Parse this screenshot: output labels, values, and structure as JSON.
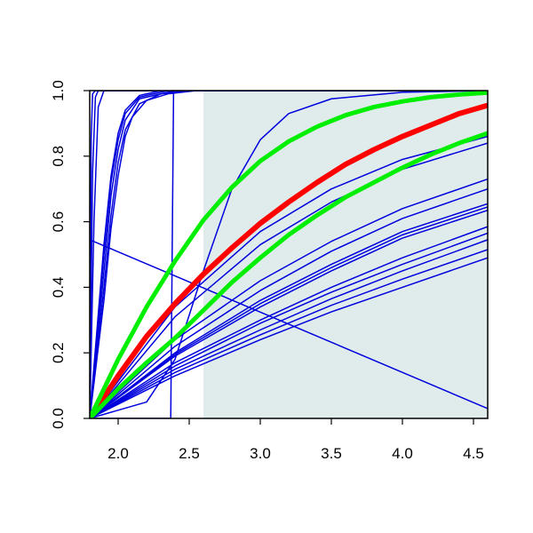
{
  "chart_data": {
    "type": "line",
    "title": "",
    "xlabel": "",
    "ylabel": "",
    "xlim": [
      1.8,
      4.6
    ],
    "ylim": [
      0.0,
      1.0
    ],
    "x_ticks": [
      2.0,
      2.5,
      3.0,
      3.5,
      4.0,
      4.5
    ],
    "x_tick_labels": [
      "2.0",
      "2.5",
      "3.0",
      "3.5",
      "4.0",
      "4.5"
    ],
    "y_ticks": [
      0.0,
      0.2,
      0.4,
      0.6,
      0.8,
      1.0
    ],
    "y_tick_labels": [
      "0.0",
      "0.2",
      "0.4",
      "0.6",
      "0.8",
      "1.0"
    ],
    "grid": false,
    "legend": "none",
    "shaded_region": {
      "x_start": 2.6,
      "x_end": 4.6,
      "color": "#e0ecec"
    },
    "colors": {
      "background_curves": "#0000dd",
      "highlight_red": "#ff0000",
      "highlight_green": "#00ee00",
      "axes": "#000000"
    },
    "series": [
      {
        "color": "#0000dd",
        "width": 1.5,
        "points": [
          [
            1.8,
            0.0
          ],
          [
            1.81,
            0.85
          ],
          [
            1.82,
            0.99
          ],
          [
            1.84,
            1.0
          ],
          [
            4.6,
            1.0
          ]
        ]
      },
      {
        "color": "#0000dd",
        "width": 1.5,
        "points": [
          [
            1.8,
            0.0
          ],
          [
            1.82,
            0.75
          ],
          [
            1.84,
            0.98
          ],
          [
            1.86,
            1.0
          ],
          [
            4.6,
            1.0
          ]
        ]
      },
      {
        "color": "#0000dd",
        "width": 1.5,
        "points": [
          [
            1.8,
            0.0
          ],
          [
            1.83,
            0.6
          ],
          [
            1.86,
            0.95
          ],
          [
            1.9,
            1.0
          ],
          [
            4.6,
            1.0
          ]
        ]
      },
      {
        "color": "#0000dd",
        "width": 1.5,
        "points": [
          [
            1.8,
            0.0
          ],
          [
            1.9,
            0.53
          ],
          [
            1.95,
            0.74
          ],
          [
            2.0,
            0.87
          ],
          [
            2.05,
            0.94
          ],
          [
            2.15,
            0.985
          ],
          [
            2.3,
            1.0
          ],
          [
            4.6,
            1.0
          ]
        ]
      },
      {
        "color": "#0000dd",
        "width": 1.5,
        "points": [
          [
            1.8,
            0.0
          ],
          [
            1.9,
            0.5
          ],
          [
            1.95,
            0.72
          ],
          [
            2.0,
            0.85
          ],
          [
            2.05,
            0.93
          ],
          [
            2.15,
            0.98
          ],
          [
            2.35,
            1.0
          ],
          [
            4.6,
            1.0
          ]
        ]
      },
      {
        "color": "#0000dd",
        "width": 1.5,
        "points": [
          [
            1.8,
            0.0
          ],
          [
            1.9,
            0.45
          ],
          [
            1.95,
            0.68
          ],
          [
            2.0,
            0.82
          ],
          [
            2.05,
            0.91
          ],
          [
            2.15,
            0.975
          ],
          [
            2.4,
            1.0
          ],
          [
            4.6,
            1.0
          ]
        ]
      },
      {
        "color": "#0000dd",
        "width": 1.5,
        "points": [
          [
            1.8,
            0.0
          ],
          [
            1.9,
            0.4
          ],
          [
            1.95,
            0.62
          ],
          [
            2.0,
            0.78
          ],
          [
            2.05,
            0.88
          ],
          [
            2.15,
            0.96
          ],
          [
            2.3,
            0.99
          ],
          [
            2.5,
            1.0
          ],
          [
            4.6,
            1.0
          ]
        ]
      },
      {
        "color": "#0000dd",
        "width": 1.5,
        "points": [
          [
            1.8,
            0.0
          ],
          [
            1.9,
            0.36
          ],
          [
            1.95,
            0.58
          ],
          [
            2.0,
            0.74
          ],
          [
            2.05,
            0.86
          ],
          [
            2.1,
            0.92
          ],
          [
            2.2,
            0.97
          ],
          [
            2.35,
            0.99
          ],
          [
            2.55,
            1.0
          ],
          [
            4.6,
            1.0
          ]
        ]
      },
      {
        "color": "#0000dd",
        "width": 1.5,
        "points": [
          [
            1.8,
            0.0
          ],
          [
            2.37,
            0.0
          ],
          [
            2.38,
            0.5
          ],
          [
            2.39,
            1.0
          ],
          [
            4.6,
            1.0
          ]
        ]
      },
      {
        "color": "#0000dd",
        "width": 1.5,
        "points": [
          [
            1.8,
            0.0
          ],
          [
            2.2,
            0.05
          ],
          [
            2.4,
            0.18
          ],
          [
            2.6,
            0.45
          ],
          [
            2.8,
            0.7
          ],
          [
            3.0,
            0.85
          ],
          [
            3.2,
            0.93
          ],
          [
            3.5,
            0.975
          ],
          [
            4.0,
            0.995
          ],
          [
            4.6,
            1.0
          ]
        ]
      },
      {
        "color": "#0000dd",
        "width": 1.5,
        "points": [
          [
            1.8,
            0.545
          ],
          [
            4.6,
            0.03
          ]
        ]
      },
      {
        "color": "#0000dd",
        "width": 1.5,
        "points": [
          [
            1.8,
            0.0
          ],
          [
            2.4,
            0.34
          ],
          [
            3.0,
            0.57
          ],
          [
            3.5,
            0.7
          ],
          [
            4.0,
            0.79
          ],
          [
            4.6,
            0.86
          ]
        ]
      },
      {
        "color": "#0000dd",
        "width": 1.5,
        "points": [
          [
            1.8,
            0.0
          ],
          [
            2.4,
            0.31
          ],
          [
            3.0,
            0.53
          ],
          [
            3.5,
            0.66
          ],
          [
            4.0,
            0.76
          ],
          [
            4.6,
            0.84
          ]
        ]
      },
      {
        "color": "#0000dd",
        "width": 1.5,
        "points": [
          [
            1.8,
            0.0
          ],
          [
            2.4,
            0.24
          ],
          [
            3.0,
            0.42
          ],
          [
            3.5,
            0.54
          ],
          [
            4.0,
            0.64
          ],
          [
            4.6,
            0.73
          ]
        ]
      },
      {
        "color": "#0000dd",
        "width": 1.5,
        "points": [
          [
            1.8,
            0.0
          ],
          [
            2.4,
            0.22
          ],
          [
            3.0,
            0.39
          ],
          [
            3.5,
            0.51
          ],
          [
            4.0,
            0.61
          ],
          [
            4.6,
            0.7
          ]
        ]
      },
      {
        "color": "#0000dd",
        "width": 1.5,
        "points": [
          [
            1.8,
            0.0
          ],
          [
            2.4,
            0.2
          ],
          [
            3.0,
            0.36
          ],
          [
            3.5,
            0.47
          ],
          [
            4.0,
            0.57
          ],
          [
            4.6,
            0.655
          ]
        ]
      },
      {
        "color": "#0000dd",
        "width": 1.5,
        "points": [
          [
            1.8,
            0.0
          ],
          [
            2.4,
            0.195
          ],
          [
            3.0,
            0.35
          ],
          [
            3.5,
            0.46
          ],
          [
            4.0,
            0.56
          ],
          [
            4.6,
            0.645
          ]
        ]
      },
      {
        "color": "#0000dd",
        "width": 1.5,
        "points": [
          [
            1.8,
            0.0
          ],
          [
            2.4,
            0.19
          ],
          [
            3.0,
            0.34
          ],
          [
            3.5,
            0.45
          ],
          [
            4.0,
            0.55
          ],
          [
            4.6,
            0.635
          ]
        ]
      },
      {
        "color": "#0000dd",
        "width": 1.5,
        "points": [
          [
            1.8,
            0.0
          ],
          [
            2.4,
            0.17
          ],
          [
            3.0,
            0.3
          ],
          [
            3.5,
            0.4
          ],
          [
            4.0,
            0.49
          ],
          [
            4.6,
            0.585
          ]
        ]
      },
      {
        "color": "#0000dd",
        "width": 1.5,
        "points": [
          [
            1.8,
            0.0
          ],
          [
            2.4,
            0.16
          ],
          [
            3.0,
            0.29
          ],
          [
            3.5,
            0.385
          ],
          [
            4.0,
            0.47
          ],
          [
            4.6,
            0.565
          ]
        ]
      },
      {
        "color": "#0000dd",
        "width": 1.5,
        "points": [
          [
            1.8,
            0.0
          ],
          [
            2.4,
            0.15
          ],
          [
            3.0,
            0.27
          ],
          [
            3.5,
            0.365
          ],
          [
            4.0,
            0.45
          ],
          [
            4.6,
            0.545
          ]
        ]
      },
      {
        "color": "#0000dd",
        "width": 1.5,
        "points": [
          [
            1.8,
            0.0
          ],
          [
            2.4,
            0.14
          ],
          [
            3.0,
            0.255
          ],
          [
            3.5,
            0.345
          ],
          [
            4.0,
            0.425
          ],
          [
            4.6,
            0.515
          ]
        ]
      },
      {
        "color": "#0000dd",
        "width": 1.5,
        "points": [
          [
            1.8,
            0.0
          ],
          [
            2.4,
            0.13
          ],
          [
            3.0,
            0.24
          ],
          [
            3.5,
            0.325
          ],
          [
            4.0,
            0.4
          ],
          [
            4.6,
            0.49
          ]
        ]
      },
      {
        "color": "#ff0000",
        "width": 6,
        "points": [
          [
            1.8,
            0.0
          ],
          [
            2.0,
            0.13
          ],
          [
            2.2,
            0.25
          ],
          [
            2.4,
            0.35
          ],
          [
            2.6,
            0.44
          ],
          [
            2.8,
            0.52
          ],
          [
            3.0,
            0.595
          ],
          [
            3.2,
            0.66
          ],
          [
            3.4,
            0.72
          ],
          [
            3.6,
            0.775
          ],
          [
            3.8,
            0.82
          ],
          [
            4.0,
            0.86
          ],
          [
            4.2,
            0.895
          ],
          [
            4.4,
            0.93
          ],
          [
            4.6,
            0.955
          ]
        ]
      },
      {
        "color": "#00ee00",
        "width": 5,
        "points": [
          [
            1.8,
            0.0
          ],
          [
            2.0,
            0.18
          ],
          [
            2.2,
            0.34
          ],
          [
            2.4,
            0.48
          ],
          [
            2.6,
            0.605
          ],
          [
            2.8,
            0.705
          ],
          [
            3.0,
            0.785
          ],
          [
            3.2,
            0.845
          ],
          [
            3.4,
            0.89
          ],
          [
            3.6,
            0.925
          ],
          [
            3.8,
            0.95
          ],
          [
            4.0,
            0.967
          ],
          [
            4.2,
            0.98
          ],
          [
            4.4,
            0.988
          ],
          [
            4.6,
            0.994
          ]
        ]
      },
      {
        "color": "#00ee00",
        "width": 5,
        "points": [
          [
            1.8,
            0.0
          ],
          [
            2.0,
            0.09
          ],
          [
            2.2,
            0.17
          ],
          [
            2.4,
            0.245
          ],
          [
            2.6,
            0.33
          ],
          [
            2.8,
            0.415
          ],
          [
            3.0,
            0.49
          ],
          [
            3.2,
            0.56
          ],
          [
            3.4,
            0.62
          ],
          [
            3.6,
            0.675
          ],
          [
            3.8,
            0.72
          ],
          [
            4.0,
            0.765
          ],
          [
            4.2,
            0.805
          ],
          [
            4.4,
            0.84
          ],
          [
            4.6,
            0.87
          ]
        ]
      }
    ]
  }
}
